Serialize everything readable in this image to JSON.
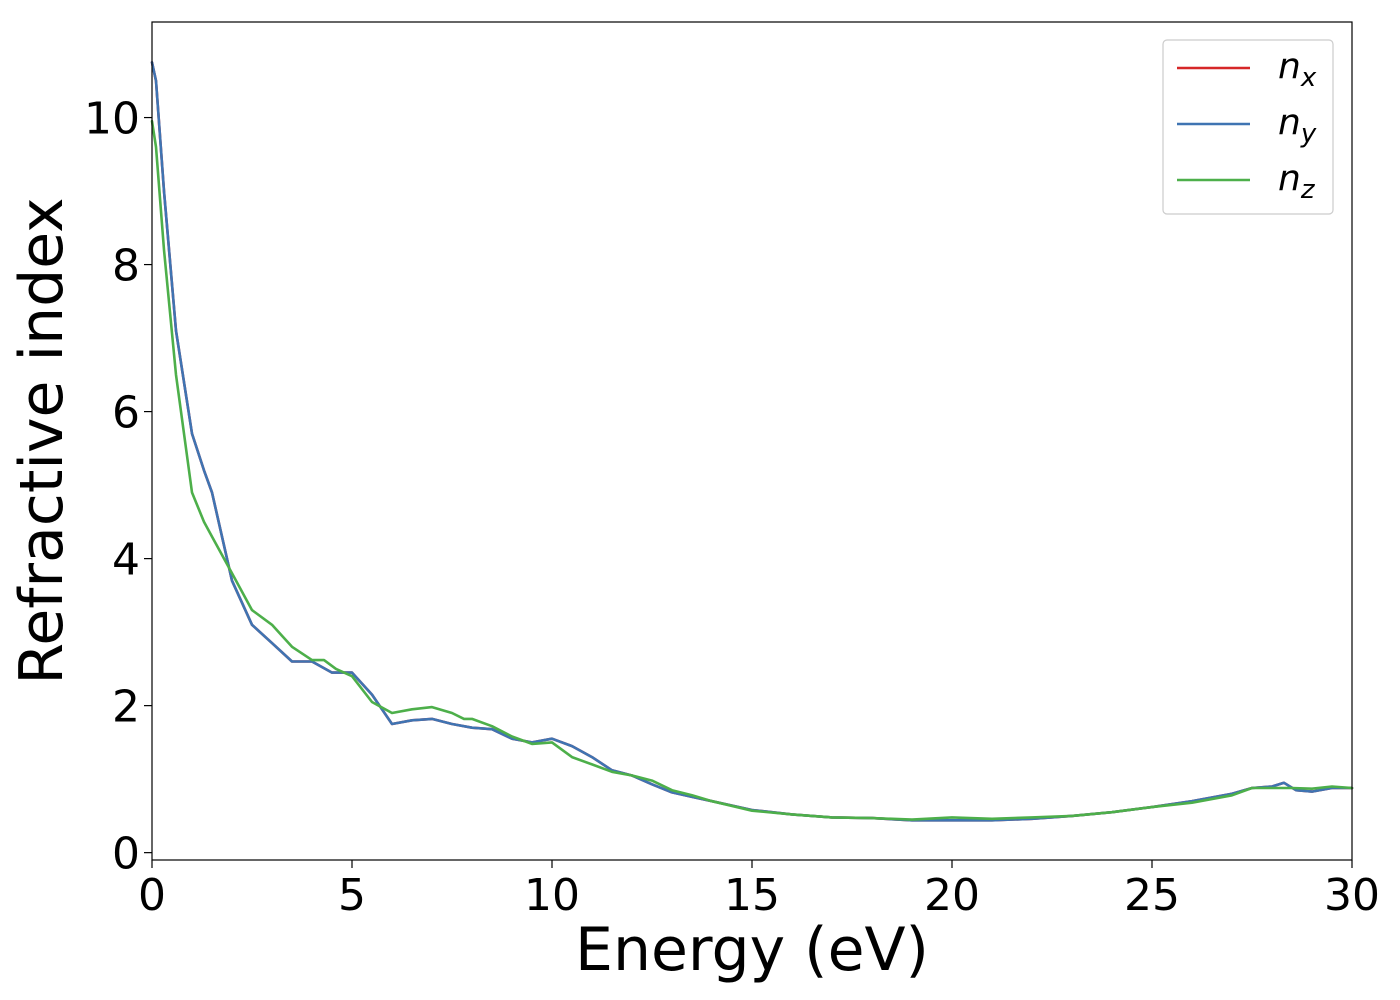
{
  "chart_data": {
    "type": "line",
    "title": "",
    "xlabel": "Energy (eV)",
    "ylabel": "Refractive index",
    "xlim": [
      0,
      30
    ],
    "ylim": [
      -0.1,
      11.3
    ],
    "xticks": [
      0,
      5,
      10,
      15,
      20,
      25,
      30
    ],
    "xtick_labels": [
      "0",
      "5",
      "10",
      "15",
      "20",
      "25",
      "30"
    ],
    "yticks": [
      0,
      2,
      4,
      6,
      8,
      10
    ],
    "ytick_labels": [
      "0",
      "2",
      "4",
      "6",
      "8",
      "10"
    ],
    "grid": false,
    "legend_position": "top-right",
    "series": [
      {
        "name": "n_x",
        "legend_base": "n",
        "legend_sub": "x",
        "color": "#d62728",
        "x": [
          0,
          0.1,
          0.3,
          0.6,
          1.0,
          1.3,
          1.5,
          2.0,
          2.5,
          3.0,
          3.5,
          4.0,
          4.5,
          5.0,
          5.5,
          6.0,
          6.5,
          7.0,
          7.5,
          8.0,
          8.5,
          9.0,
          9.5,
          10.0,
          10.5,
          11.0,
          11.5,
          12.0,
          12.5,
          13.0,
          13.5,
          14.0,
          15.0,
          16.0,
          17.0,
          18.0,
          19.0,
          20.0,
          21.0,
          22.0,
          23.0,
          24.0,
          25.0,
          26.0,
          27.0,
          27.5,
          28.0,
          28.3,
          28.6,
          29.0,
          29.5,
          30.0
        ],
        "values": [
          10.75,
          10.5,
          9.0,
          7.1,
          5.7,
          5.2,
          4.9,
          3.7,
          3.1,
          2.85,
          2.6,
          2.6,
          2.45,
          2.45,
          2.15,
          1.75,
          1.8,
          1.82,
          1.75,
          1.7,
          1.68,
          1.55,
          1.5,
          1.55,
          1.45,
          1.3,
          1.12,
          1.05,
          0.93,
          0.82,
          0.76,
          0.7,
          0.58,
          0.52,
          0.48,
          0.47,
          0.44,
          0.44,
          0.44,
          0.46,
          0.5,
          0.55,
          0.62,
          0.7,
          0.8,
          0.88,
          0.9,
          0.95,
          0.85,
          0.83,
          0.88,
          0.88
        ]
      },
      {
        "name": "n_y",
        "legend_base": "n",
        "legend_sub": "y",
        "color": "#3f74b2",
        "x": [
          0,
          0.1,
          0.3,
          0.6,
          1.0,
          1.3,
          1.5,
          2.0,
          2.5,
          3.0,
          3.5,
          4.0,
          4.5,
          5.0,
          5.5,
          6.0,
          6.5,
          7.0,
          7.5,
          8.0,
          8.5,
          9.0,
          9.5,
          10.0,
          10.5,
          11.0,
          11.5,
          12.0,
          12.5,
          13.0,
          13.5,
          14.0,
          15.0,
          16.0,
          17.0,
          18.0,
          19.0,
          20.0,
          21.0,
          22.0,
          23.0,
          24.0,
          25.0,
          26.0,
          27.0,
          27.5,
          28.0,
          28.3,
          28.6,
          29.0,
          29.5,
          30.0
        ],
        "values": [
          10.75,
          10.5,
          9.0,
          7.1,
          5.7,
          5.2,
          4.9,
          3.7,
          3.1,
          2.85,
          2.6,
          2.6,
          2.45,
          2.45,
          2.15,
          1.75,
          1.8,
          1.82,
          1.75,
          1.7,
          1.68,
          1.55,
          1.5,
          1.55,
          1.45,
          1.3,
          1.12,
          1.05,
          0.93,
          0.82,
          0.76,
          0.7,
          0.58,
          0.52,
          0.48,
          0.47,
          0.44,
          0.44,
          0.44,
          0.46,
          0.5,
          0.55,
          0.62,
          0.7,
          0.8,
          0.88,
          0.9,
          0.95,
          0.85,
          0.83,
          0.88,
          0.88
        ]
      },
      {
        "name": "n_z",
        "legend_base": "n",
        "legend_sub": "z",
        "color": "#4daf4a",
        "x": [
          0,
          0.1,
          0.3,
          0.6,
          1.0,
          1.3,
          1.5,
          2.0,
          2.5,
          3.0,
          3.5,
          4.0,
          4.3,
          4.6,
          5.0,
          5.5,
          6.0,
          6.5,
          7.0,
          7.5,
          7.8,
          8.0,
          8.5,
          9.0,
          9.5,
          10.0,
          10.5,
          11.0,
          11.5,
          12.0,
          12.5,
          13.0,
          13.5,
          14.0,
          15.0,
          16.0,
          17.0,
          18.0,
          19.0,
          20.0,
          21.0,
          22.0,
          23.0,
          24.0,
          25.0,
          26.0,
          27.0,
          27.5,
          28.0,
          28.5,
          29.0,
          29.5,
          30.0
        ],
        "values": [
          9.95,
          9.6,
          8.2,
          6.5,
          4.9,
          4.5,
          4.3,
          3.8,
          3.3,
          3.1,
          2.8,
          2.62,
          2.62,
          2.5,
          2.4,
          2.05,
          1.9,
          1.95,
          1.98,
          1.9,
          1.82,
          1.82,
          1.72,
          1.58,
          1.48,
          1.5,
          1.3,
          1.2,
          1.1,
          1.05,
          0.98,
          0.85,
          0.78,
          0.7,
          0.57,
          0.52,
          0.48,
          0.47,
          0.45,
          0.48,
          0.46,
          0.48,
          0.5,
          0.55,
          0.62,
          0.68,
          0.78,
          0.88,
          0.88,
          0.88,
          0.87,
          0.9,
          0.88
        ]
      }
    ]
  }
}
